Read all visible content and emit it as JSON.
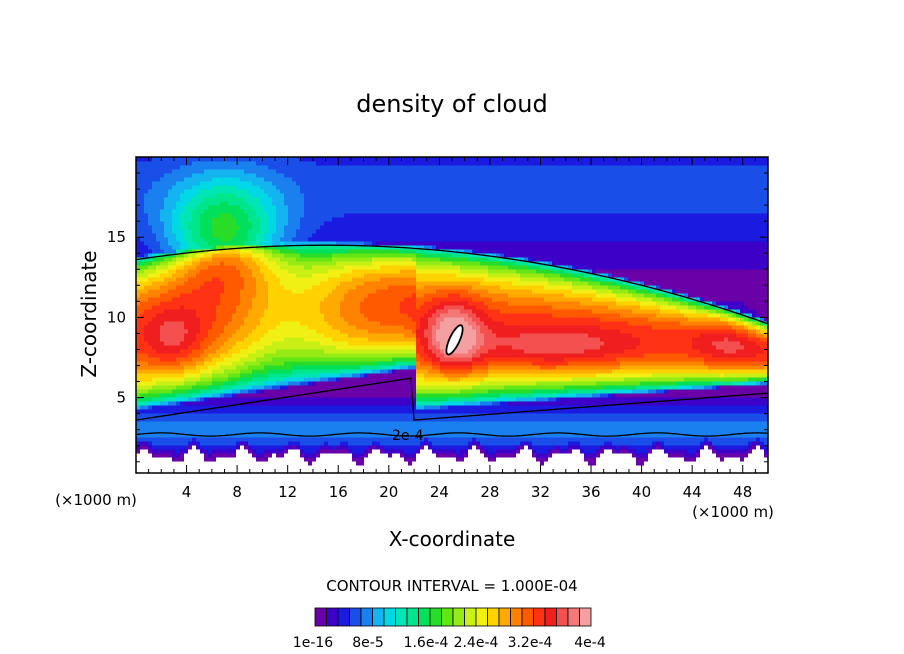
{
  "chart_data": {
    "type": "heatmap",
    "title": "density of cloud",
    "xlabel": "X-coordinate",
    "ylabel": "Z-coordinate",
    "x_unit_left": "(×1000 m)",
    "x_unit_right": "(×1000 m)",
    "xlim": [
      0,
      50
    ],
    "ylim": [
      0.3,
      20
    ],
    "x_ticks": [
      4,
      8,
      12,
      16,
      20,
      24,
      28,
      32,
      36,
      40,
      44,
      48
    ],
    "y_ticks": [
      5,
      10,
      15
    ],
    "contour_label": "2e-4",
    "contour_interval_text": "CONTOUR INTERVAL = 1.000E-04",
    "colorbar": {
      "range": [
        0,
        0.0004
      ],
      "tick_labels": [
        "1e-16",
        "8e-5",
        "1.6e-4",
        "2.4e-4",
        "3.2e-4",
        "4e-4"
      ],
      "colors": [
        "#6a00a8",
        "#3d00c8",
        "#1a1ae0",
        "#1a4ee8",
        "#1a80f0",
        "#14b4f0",
        "#00d8e6",
        "#00e6b4",
        "#00e68c",
        "#00e05a",
        "#28dc28",
        "#64e614",
        "#96eb14",
        "#c8f014",
        "#f0f014",
        "#ffd200",
        "#ffaa00",
        "#ff8200",
        "#ff5a00",
        "#ff3214",
        "#f01e1e",
        "#f55050",
        "#f57878",
        "#f5a0a0"
      ]
    },
    "field_description": {
      "peak_value": 0.0004,
      "peak_location": [
        25.2,
        8.6
      ],
      "core_layer_z": [
        4,
        14
      ]
    }
  }
}
